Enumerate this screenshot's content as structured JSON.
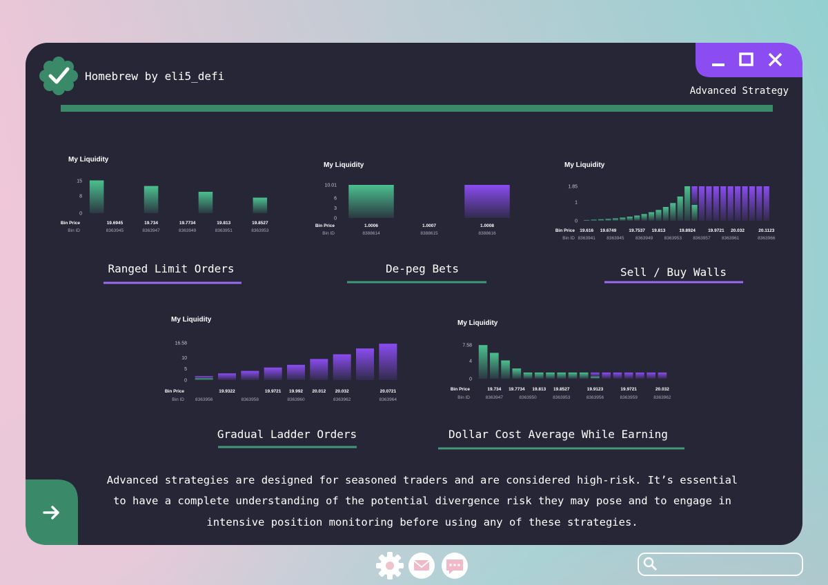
{
  "window": {
    "title": "Homebrew by eli5_defi",
    "subtitle": "Advanced Strategy"
  },
  "chart_data": [
    {
      "type": "bar",
      "title": "My Liquidity",
      "caption": "Ranged Limit Orders",
      "stacked": true,
      "category_label": "Bin Price",
      "categories": [
        null,
        "19.6945",
        null,
        "19.734",
        null,
        "19.7734",
        null,
        "19.813",
        null,
        "19.8527"
      ],
      "bin_id_label": "Bin ID",
      "bin_ids": [
        null,
        "8363945",
        null,
        "8363947",
        null,
        "8363949",
        null,
        "8363951",
        null,
        "8363953"
      ],
      "series": [
        {
          "color": "#4cc08f",
          "values": [
            15.2,
            0,
            0,
            12.6,
            0,
            0,
            9.9,
            0,
            0,
            7.2
          ]
        }
      ],
      "ylim": [
        0,
        16
      ],
      "yticks": [
        0,
        8,
        15
      ]
    },
    {
      "type": "bar",
      "title": "My Liquidity",
      "caption": "De-peg Bets",
      "stacked": true,
      "category_label": "Bin Price",
      "categories": [
        "1.0006",
        "1.0007",
        "1.0008"
      ],
      "bin_id_label": "Bin ID",
      "bin_ids": [
        "8388614",
        "8388615",
        "8388616"
      ],
      "series": [
        {
          "color": "#4cc08f",
          "values": [
            10.01,
            0,
            0
          ]
        },
        {
          "color": "#8a4cf0",
          "values": [
            0,
            0,
            10.01
          ]
        }
      ],
      "ylim": [
        0,
        10.01
      ],
      "yticks": [
        0,
        3,
        6,
        10.01
      ]
    },
    {
      "type": "bar",
      "title": "My Liquidity",
      "caption": "Sell / Buy Walls",
      "stacked": true,
      "category_label": "Bin Price",
      "categories": [
        "19.616",
        null,
        null,
        "19.6749",
        null,
        null,
        null,
        "19.7537",
        null,
        null,
        "19.813",
        null,
        null,
        null,
        "19.8924",
        null,
        null,
        null,
        "19.9721",
        null,
        null,
        "20.032",
        null,
        null,
        null,
        "20.1123"
      ],
      "bin_id_label": "Bin ID",
      "bin_ids": [
        "8363941",
        null,
        null,
        null,
        "8363945",
        null,
        null,
        null,
        "8363949",
        null,
        null,
        null,
        "8363953",
        null,
        null,
        null,
        "8363957",
        null,
        null,
        null,
        "8363961",
        null,
        null,
        null,
        null,
        "8363966"
      ],
      "series": [
        {
          "color": "#4cc08f",
          "values": [
            0.04,
            0.06,
            0.08,
            0.1,
            0.13,
            0.17,
            0.22,
            0.28,
            0.36,
            0.46,
            0.58,
            0.74,
            0.95,
            1.3,
            1.85,
            0.85,
            0,
            0,
            0,
            0,
            0,
            0,
            0,
            0,
            0,
            0
          ]
        },
        {
          "color": "#8a4cf0",
          "values": [
            0,
            0,
            0,
            0,
            0,
            0,
            0,
            0,
            0,
            0,
            0,
            0,
            0,
            0,
            0,
            1.0,
            1.85,
            1.85,
            1.85,
            1.85,
            1.85,
            1.85,
            1.85,
            1.85,
            1.85,
            1.85
          ]
        }
      ],
      "ylim": [
        0,
        1.85
      ],
      "yticks": [
        0,
        1,
        1.85
      ]
    },
    {
      "type": "bar",
      "title": "My Liquidity",
      "caption": "Gradual Ladder Orders",
      "stacked": true,
      "category_label": "Bin Price",
      "categories": [
        null,
        "19.9322",
        null,
        "19.9721",
        "19.992",
        "20.012",
        "20.032",
        null,
        "20.0721"
      ],
      "bin_id_label": "Bin ID",
      "bin_ids": [
        "8363956",
        null,
        "8363958",
        null,
        "8363960",
        null,
        "8363962",
        null,
        "8363964"
      ],
      "series": [
        {
          "color": "#4cc08f",
          "values": [
            0.8,
            0,
            0,
            0,
            0,
            0,
            0,
            0,
            0
          ]
        },
        {
          "color": "#8a4cf0",
          "values": [
            1.0,
            3,
            4.1,
            5.6,
            6.8,
            9.4,
            11.5,
            14.1,
            16.2
          ]
        }
      ],
      "ylim": [
        0,
        16.58
      ],
      "yticks": [
        0,
        5,
        10,
        16.58
      ]
    },
    {
      "type": "bar",
      "title": "My Liquidity",
      "caption": "Dollar Cost Average While Earning",
      "stacked": true,
      "category_label": "Bin Price",
      "categories": [
        null,
        "19.734",
        null,
        "19.7734",
        null,
        "19.813",
        null,
        "19.8527",
        null,
        null,
        "19.9123",
        null,
        null,
        "19.9721",
        null,
        null,
        "20.032"
      ],
      "bin_id_label": "Bin ID",
      "bin_ids": [
        null,
        "8363947",
        null,
        null,
        "8363950",
        null,
        null,
        "8363953",
        null,
        null,
        "8363956",
        null,
        null,
        "8363959",
        null,
        null,
        "8363962"
      ],
      "series": [
        {
          "color": "#4cc08f",
          "values": [
            7.55,
            5.8,
            4.1,
            2.3,
            1.4,
            1.4,
            1.4,
            1.4,
            1.4,
            1.4,
            0.5,
            0,
            0,
            0,
            0,
            0,
            0
          ]
        },
        {
          "color": "#8a4cf0",
          "values": [
            0,
            0,
            0,
            0,
            0,
            0,
            0,
            0,
            0,
            0,
            0.9,
            1.4,
            1.4,
            1.4,
            1.4,
            1.4,
            1.4
          ]
        }
      ],
      "ylim": [
        0,
        7.58
      ],
      "yticks": [
        0,
        4,
        7.58
      ]
    }
  ],
  "description": [
    "Advanced strategies are designed for seasoned traders and are considered high-risk. It’s essential",
    "to have a complete understanding of the potential divergence risk they may pose and to engage in",
    "intensive position monitoring before using any of these strategies."
  ]
}
